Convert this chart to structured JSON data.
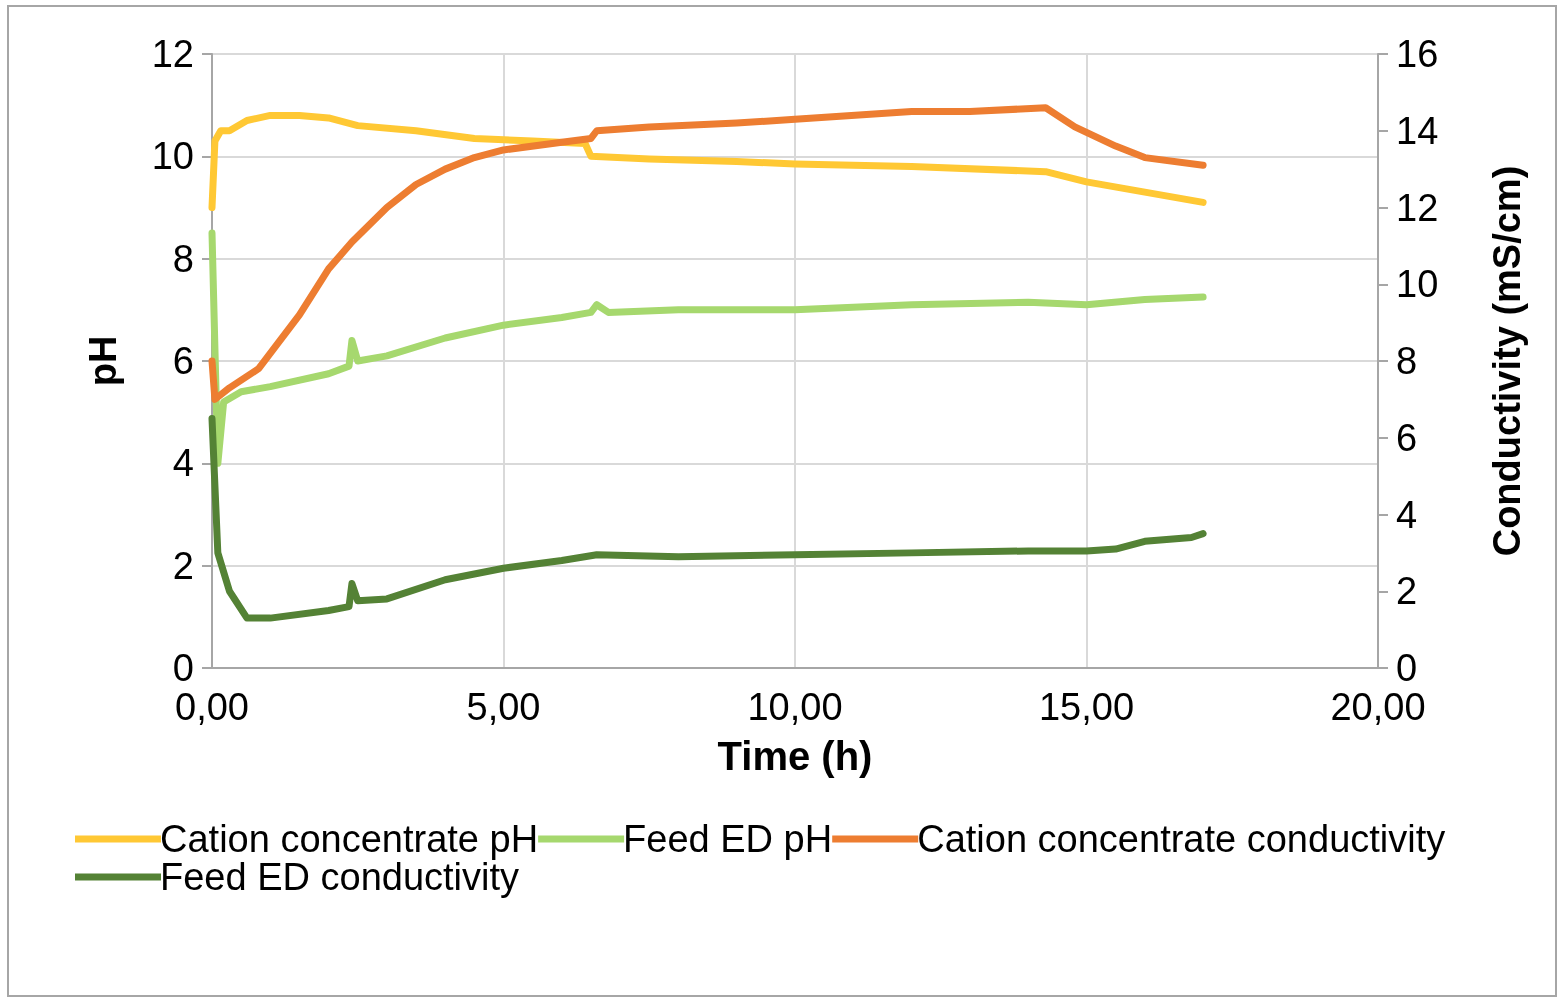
{
  "chart_data": {
    "type": "line",
    "xlabel": "Time (h)",
    "ylabel": "pH",
    "y2label": "Conductivity (mS/cm)",
    "xlim": [
      0,
      20
    ],
    "xticks": [
      {
        "value": 0,
        "label": "0,00"
      },
      {
        "value": 5,
        "label": "5,00"
      },
      {
        "value": 10,
        "label": "10,00"
      },
      {
        "value": 15,
        "label": "15,00"
      },
      {
        "value": 20,
        "label": "20,00"
      }
    ],
    "ylim": [
      0,
      12
    ],
    "yticks": [
      0,
      2,
      4,
      6,
      8,
      10,
      12
    ],
    "y2lim": [
      0,
      16
    ],
    "y2ticks": [
      0,
      2,
      4,
      6,
      8,
      10,
      12,
      14,
      16
    ],
    "grid": true,
    "legend": "bottom",
    "marker": "none",
    "line_style": "solid",
    "series": [
      {
        "name": "Cation concentrate pH",
        "color": "#ffc834",
        "x": [
          0,
          0.05,
          0.15,
          0.3,
          0.6,
          1.0,
          1.5,
          2,
          2.5,
          3.5,
          4.5,
          5.5,
          6.4,
          6.5,
          7.5,
          9,
          10,
          12,
          14.3,
          15,
          16,
          17
        ],
        "values": [
          9,
          10.3,
          10.5,
          10.5,
          10.7,
          10.8,
          10.8,
          10.75,
          10.6,
          10.5,
          10.35,
          10.3,
          10.25,
          10.0,
          9.95,
          9.9,
          9.85,
          9.8,
          9.7,
          9.5,
          9.3,
          9.1
        ]
      },
      {
        "name": "Feed ED pH",
        "color": "#a6d86e",
        "x": [
          0,
          0.1,
          0.2,
          0.5,
          1,
          2,
          2.35,
          2.4,
          2.5,
          3,
          4,
          5,
          6,
          6.5,
          6.6,
          6.8,
          8,
          10,
          12,
          14,
          15,
          16,
          17
        ],
        "values": [
          8.5,
          4,
          5.2,
          5.4,
          5.5,
          5.75,
          5.9,
          6.4,
          6.0,
          6.1,
          6.45,
          6.7,
          6.85,
          6.95,
          7.1,
          6.95,
          7.0,
          7.0,
          7.1,
          7.15,
          7.1,
          7.2,
          7.25
        ]
      },
      {
        "name": "Cation concentrate conductivity",
        "color": "#ed7d31",
        "axis": "y2",
        "x": [
          0,
          0.05,
          0.3,
          0.8,
          1.5,
          2,
          2.4,
          3,
          3.5,
          4,
          4.5,
          5,
          6,
          6.5,
          6.6,
          7.5,
          9,
          10,
          12,
          13,
          14.3,
          14.8,
          15.5,
          16,
          17
        ],
        "values": [
          8,
          7,
          7.3,
          7.8,
          9.2,
          10.4,
          11.1,
          12,
          12.6,
          13,
          13.3,
          13.5,
          13.7,
          13.8,
          14,
          14.1,
          14.2,
          14.3,
          14.5,
          14.5,
          14.6,
          14.1,
          13.6,
          13.3,
          13.1
        ]
      },
      {
        "name": "Feed ED conductivity",
        "color": "#548235",
        "axis": "y2",
        "x": [
          0,
          0.1,
          0.3,
          0.6,
          1,
          2,
          2.35,
          2.4,
          2.5,
          3,
          4,
          5,
          6,
          6.6,
          8,
          10,
          12,
          14,
          15,
          15.5,
          16,
          16.8,
          17
        ],
        "values": [
          6.5,
          3,
          2,
          1.3,
          1.3,
          1.5,
          1.6,
          2.2,
          1.75,
          1.8,
          2.3,
          2.6,
          2.8,
          2.95,
          2.9,
          2.95,
          3.0,
          3.05,
          3.05,
          3.1,
          3.3,
          3.4,
          3.5
        ]
      }
    ]
  }
}
